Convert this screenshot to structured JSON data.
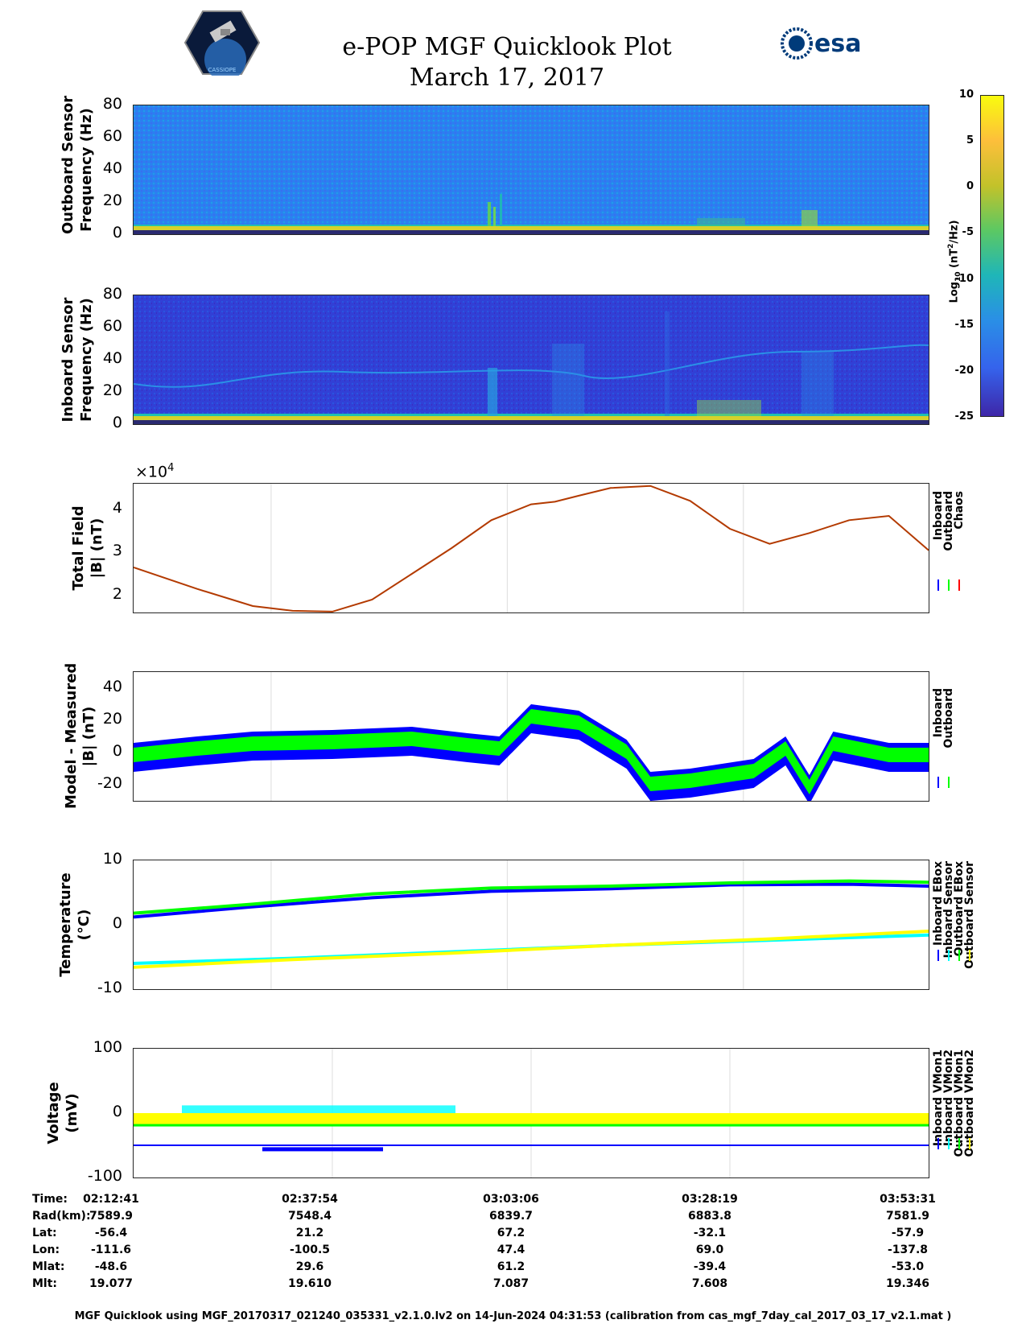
{
  "header": {
    "title_line1": "e-POP MGF Quicklook Plot",
    "title_line2": "March 17, 2017",
    "logo_left_text": "CASSIOPE",
    "logo_right_text": "esa"
  },
  "colorbar": {
    "label": "Log10 (nT^2/Hz)",
    "ticks": [
      "10",
      "5",
      "0",
      "-5",
      "-10",
      "-15",
      "-20",
      "-25"
    ]
  },
  "panels": {
    "outboard_spec": {
      "ylabel1": "Outboard Sensor",
      "ylabel2": "Frequency (Hz)",
      "ticks": [
        "80",
        "60",
        "40",
        "20",
        "0"
      ]
    },
    "inboard_spec": {
      "ylabel1": "Inboard Sensor",
      "ylabel2": "Frequency (Hz)",
      "ticks": [
        "80",
        "60",
        "40",
        "20",
        "0"
      ]
    },
    "total_field": {
      "ylabel1": "Total Field",
      "ylabel2": "|B| (nT)",
      "ticks": [
        "4",
        "3",
        "2"
      ],
      "exponent": "×10",
      "exponent_sup": "4",
      "legend": [
        "Inboard",
        "Outboard",
        "Chaos"
      ]
    },
    "model_measured": {
      "ylabel1": "Model - Measured",
      "ylabel2": "|B| (nT)",
      "ticks": [
        "40",
        "20",
        "0",
        "-20"
      ],
      "legend": [
        "Inboard",
        "Outboard"
      ]
    },
    "temperature": {
      "ylabel1": "Temperature",
      "ylabel2": "(°C)",
      "ticks": [
        "10",
        "0",
        "-10"
      ],
      "legend": [
        "Inboard EBox",
        "Inboard Sensor",
        "Outboard EBox",
        "Outboard Sensor"
      ]
    },
    "voltage": {
      "ylabel1": "Voltage",
      "ylabel2": "(mV)",
      "ticks": [
        "100",
        "0",
        "-100"
      ],
      "legend": [
        "Inboard VMon1",
        "Inboard VMon2",
        "Outboard VMon1",
        "Outboard VMon2"
      ]
    }
  },
  "ephemeris": {
    "row_labels": [
      "Time:",
      "Rad(km):",
      "Lat:",
      "Lon:",
      "Mlat:",
      "Mlt:"
    ],
    "columns": [
      [
        "02:12:41",
        "7589.9",
        "-56.4",
        "-111.6",
        "-48.6",
        "19.077"
      ],
      [
        "02:37:54",
        "7548.4",
        "21.2",
        "-100.5",
        "29.6",
        "19.610"
      ],
      [
        "03:03:06",
        "6839.7",
        "67.2",
        "47.4",
        "61.2",
        "7.087"
      ],
      [
        "03:28:19",
        "6883.8",
        "-32.1",
        "69.0",
        "-39.4",
        "7.608"
      ],
      [
        "03:53:31",
        "7581.9",
        "-57.9",
        "-137.8",
        "-53.0",
        "19.346"
      ]
    ]
  },
  "footer": "MGF Quicklook using MGF_20170317_021240_035331_v2.1.0.lv2 on 14-Jun-2024 04:31:53 (calibration from cas_mgf_7day_cal_2017_03_17_v2.1.mat )",
  "colors": {
    "inboard": "#0000ff",
    "outboard": "#00ff00",
    "chaos": "#ff0000",
    "cyan": "#00ffff",
    "yellow": "#ffff00",
    "spec_bg_out": "#2a7ff0",
    "spec_bg_in": "#2e3cd6"
  },
  "chart_data": [
    {
      "type": "heatmap",
      "title": "",
      "ylabel": "Outboard Sensor Frequency (Hz)",
      "ylim": [
        0,
        80
      ],
      "clim": [
        -25,
        10
      ]
    },
    {
      "type": "heatmap",
      "title": "",
      "ylabel": "Inboard Sensor Frequency (Hz)",
      "ylim": [
        0,
        80
      ],
      "clim": [
        -25,
        10
      ]
    },
    {
      "type": "line",
      "ylabel": "Total Field |B| (nT)",
      "ylim": [
        1.6,
        4.6
      ],
      "yscale_note": "×10^4",
      "x": [
        0,
        0.08,
        0.15,
        0.2,
        0.25,
        0.3,
        0.35,
        0.4,
        0.45,
        0.5,
        0.53,
        0.56,
        0.6,
        0.65,
        0.7,
        0.75,
        0.8,
        0.85,
        0.9,
        0.95,
        1.0
      ],
      "series": [
        {
          "name": "Chaos",
          "values": [
            2.65,
            2.15,
            1.75,
            1.64,
            1.62,
            1.9,
            2.5,
            3.1,
            3.75,
            4.12,
            4.18,
            4.32,
            4.5,
            4.55,
            4.2,
            3.55,
            3.2,
            3.45,
            3.75,
            3.85,
            3.05
          ]
        }
      ]
    },
    {
      "type": "line",
      "ylabel": "Model - Measured |B| (nT)",
      "ylim": [
        -30,
        50
      ],
      "series": [
        {
          "name": "Inboard"
        },
        {
          "name": "Outboard"
        }
      ]
    },
    {
      "type": "line",
      "ylabel": "Temperature (°C)",
      "ylim": [
        -10,
        10
      ],
      "series": [
        {
          "name": "Inboard EBox"
        },
        {
          "name": "Inboard Sensor"
        },
        {
          "name": "Outboard EBox"
        },
        {
          "name": "Outboard Sensor"
        }
      ]
    },
    {
      "type": "line",
      "ylabel": "Voltage (mV)",
      "ylim": [
        -100,
        100
      ],
      "series": [
        {
          "name": "Inboard VMon1"
        },
        {
          "name": "Inboard VMon2"
        },
        {
          "name": "Outboard VMon1"
        },
        {
          "name": "Outboard VMon2"
        }
      ]
    }
  ]
}
